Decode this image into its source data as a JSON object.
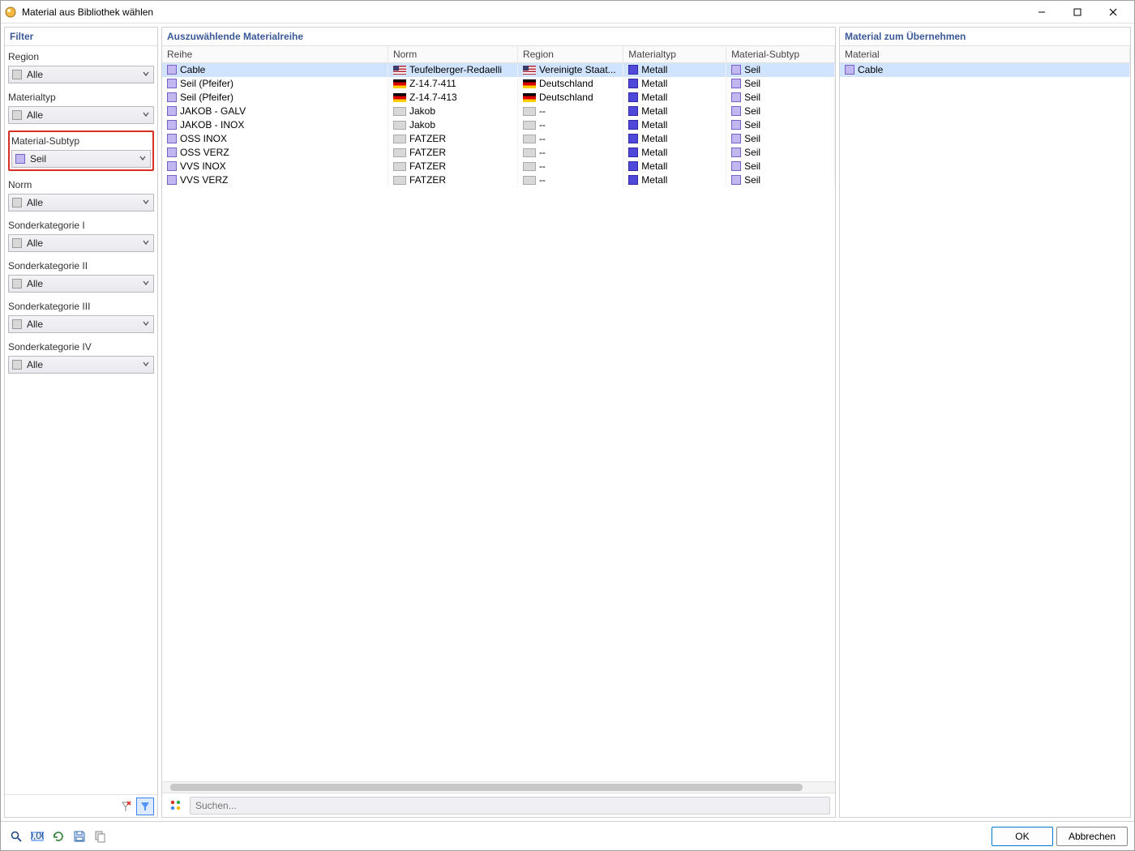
{
  "window": {
    "title": "Material aus Bibliothek wählen"
  },
  "filter": {
    "header": "Filter",
    "groups": [
      {
        "key": "region",
        "label": "Region",
        "value": "Alle",
        "swatch": "none",
        "highlight": false
      },
      {
        "key": "materialtyp",
        "label": "Materialtyp",
        "value": "Alle",
        "swatch": "none",
        "highlight": false
      },
      {
        "key": "material_subtyp",
        "label": "Material-Subtyp",
        "value": "Seil",
        "swatch": "seil",
        "highlight": true
      },
      {
        "key": "norm",
        "label": "Norm",
        "value": "Alle",
        "swatch": "none",
        "highlight": false
      },
      {
        "key": "sk1",
        "label": "Sonderkategorie I",
        "value": "Alle",
        "swatch": "none",
        "highlight": false
      },
      {
        "key": "sk2",
        "label": "Sonderkategorie II",
        "value": "Alle",
        "swatch": "none",
        "highlight": false
      },
      {
        "key": "sk3",
        "label": "Sonderkategorie III",
        "value": "Alle",
        "swatch": "none",
        "highlight": false
      },
      {
        "key": "sk4",
        "label": "Sonderkategorie IV",
        "value": "Alle",
        "swatch": "none",
        "highlight": false
      }
    ]
  },
  "center": {
    "header": "Auszuwählende Materialreihe",
    "columns": {
      "reihe": "Reihe",
      "norm": "Norm",
      "region": "Region",
      "materialtyp": "Materialtyp",
      "material_subtyp": "Material-Subtyp"
    },
    "col_widths": {
      "reihe": 235,
      "norm": 135,
      "region": 110,
      "materialtyp": 107,
      "material_subtyp": 113
    },
    "rows": [
      {
        "reihe": "Cable",
        "norm": "Teufelberger-Redaelli",
        "norm_flag": "us",
        "region": "Vereinigte Staat...",
        "region_flag": "us",
        "materialtyp": "Metall",
        "material_subtyp": "Seil",
        "selected": true
      },
      {
        "reihe": "Seil (Pfeifer)",
        "norm": "Z-14.7-411",
        "norm_flag": "de",
        "region": "Deutschland",
        "region_flag": "de",
        "materialtyp": "Metall",
        "material_subtyp": "Seil",
        "selected": false
      },
      {
        "reihe": "Seil (Pfeifer)",
        "norm": "Z-14.7-413",
        "norm_flag": "de",
        "region": "Deutschland",
        "region_flag": "de",
        "materialtyp": "Metall",
        "material_subtyp": "Seil",
        "selected": false
      },
      {
        "reihe": "JAKOB - GALV",
        "norm": "Jakob",
        "norm_flag": "none",
        "region": "--",
        "region_flag": "none",
        "materialtyp": "Metall",
        "material_subtyp": "Seil",
        "selected": false
      },
      {
        "reihe": "JAKOB - INOX",
        "norm": "Jakob",
        "norm_flag": "none",
        "region": "--",
        "region_flag": "none",
        "materialtyp": "Metall",
        "material_subtyp": "Seil",
        "selected": false
      },
      {
        "reihe": "OSS INOX",
        "norm": "FATZER",
        "norm_flag": "none",
        "region": "--",
        "region_flag": "none",
        "materialtyp": "Metall",
        "material_subtyp": "Seil",
        "selected": false
      },
      {
        "reihe": "OSS VERZ",
        "norm": "FATZER",
        "norm_flag": "none",
        "region": "--",
        "region_flag": "none",
        "materialtyp": "Metall",
        "material_subtyp": "Seil",
        "selected": false
      },
      {
        "reihe": "VVS INOX",
        "norm": "FATZER",
        "norm_flag": "none",
        "region": "--",
        "region_flag": "none",
        "materialtyp": "Metall",
        "material_subtyp": "Seil",
        "selected": false
      },
      {
        "reihe": "VVS VERZ",
        "norm": "FATZER",
        "norm_flag": "none",
        "region": "--",
        "region_flag": "none",
        "materialtyp": "Metall",
        "material_subtyp": "Seil",
        "selected": false
      }
    ],
    "search_placeholder": "Suchen..."
  },
  "right": {
    "header": "Material zum Übernehmen",
    "column": "Material",
    "rows": [
      {
        "name": "Cable",
        "selected": true
      }
    ]
  },
  "buttons": {
    "ok": "OK",
    "cancel": "Abbrechen"
  },
  "colors": {
    "accent": "#3b5998",
    "highlight_border": "#d93025",
    "row_selected": "#d0e4ff",
    "metall_swatch": "#5048d8",
    "seil_swatch": "#c0b8ee"
  }
}
